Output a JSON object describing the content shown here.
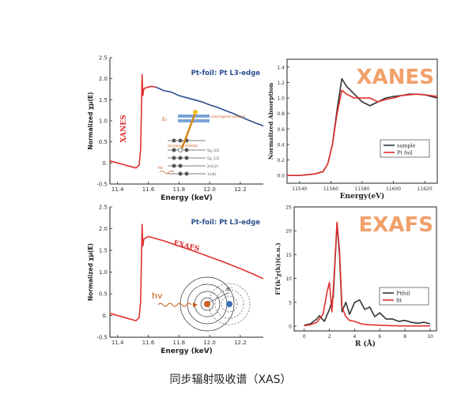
{
  "caption": "同步辐射吸收谱（XAS）",
  "colors": {
    "red": "#e03030",
    "blue": "#2c4f8f",
    "black": "#333333",
    "orange_title": "#f2a06a",
    "diagram_orange": "#cc5a1a"
  },
  "chart_data": [
    {
      "id": "xanes-left",
      "type": "line",
      "title": "Pt-foil: Pt L3-edge",
      "annotation": "XANES",
      "xlabel": "Energy (keV)",
      "ylabel": "Normalized χμ(E)",
      "xlim": [
        11.35,
        12.35
      ],
      "ylim": [
        -0.5,
        2.5
      ],
      "xticks": [
        11.4,
        11.6,
        11.8,
        12.0,
        12.2
      ],
      "yticks": [
        -0.5,
        0,
        0.5,
        1.0,
        1.5,
        2.0,
        2.5
      ],
      "xtick_labels": [
        "11.4",
        "11.6",
        "11.8",
        "12.0",
        "12.2"
      ],
      "ytick_labels": [
        "-0.5",
        "0.",
        "0.5",
        "1.0",
        "1.5",
        "2.0",
        "2.5"
      ],
      "series": [
        {
          "color": "#e03030",
          "x": [
            11.35,
            11.4,
            11.45,
            11.5,
            11.52,
            11.54,
            11.55,
            11.555,
            11.56,
            11.565,
            11.57,
            11.58,
            11.6,
            11.62,
            11.65
          ],
          "y": [
            0.05,
            0.0,
            -0.05,
            -0.1,
            -0.12,
            -0.05,
            0.3,
            1.2,
            2.1,
            1.6,
            1.75,
            1.78,
            1.8,
            1.82,
            1.8
          ]
        },
        {
          "color": "#2c4f8f",
          "x": [
            11.65,
            11.7,
            11.75,
            11.8,
            11.85,
            11.9,
            11.95,
            12.0,
            12.05,
            12.1,
            12.15,
            12.2,
            12.25,
            12.3,
            12.35
          ],
          "y": [
            1.8,
            1.72,
            1.68,
            1.6,
            1.55,
            1.5,
            1.45,
            1.38,
            1.32,
            1.25,
            1.18,
            1.1,
            1.02,
            0.95,
            0.88
          ]
        }
      ],
      "diagram_labels": {
        "e_level": "E₀",
        "unoccupied": "unoccupied orbitals",
        "occupied": "occupied orbitals",
        "hv": "hv",
        "levels": [
          "5p_3/2",
          "5p_1/2",
          "2s(L2)",
          "1s(K)"
        ]
      }
    },
    {
      "id": "xanes-right",
      "type": "line",
      "title": "XANES",
      "xlabel": "Energy(eV)",
      "ylabel": "Normalized Absorption",
      "xlim": [
        11532,
        11628
      ],
      "ylim": [
        -0.1,
        1.5
      ],
      "xticks": [
        11540,
        11560,
        11580,
        11600,
        11620
      ],
      "yticks": [
        0.0,
        0.2,
        0.4,
        0.6,
        0.8,
        1.0,
        1.2,
        1.4
      ],
      "xtick_labels": [
        "11540",
        "11560",
        "11580",
        "11600",
        "11620"
      ],
      "ytick_labels": [
        "0.0",
        "0.2",
        "0.4",
        "0.6",
        "0.8",
        "1.0",
        "1.2",
        "1.4"
      ],
      "legend": {
        "position": "right",
        "entries": [
          "sample",
          "Pt foil"
        ]
      },
      "series": [
        {
          "name": "sample",
          "color": "#333333",
          "x": [
            11532,
            11540,
            11550,
            11555,
            11558,
            11561,
            11564,
            11567,
            11570,
            11575,
            11580,
            11585,
            11590,
            11595,
            11600,
            11605,
            11610,
            11615,
            11620,
            11628
          ],
          "y": [
            0.0,
            0.0,
            0.02,
            0.05,
            0.15,
            0.4,
            0.85,
            1.25,
            1.15,
            1.05,
            0.95,
            0.9,
            0.95,
            1.0,
            1.02,
            1.03,
            1.05,
            1.05,
            1.04,
            1.0
          ]
        },
        {
          "name": "Pt foil",
          "color": "#e03030",
          "x": [
            11532,
            11540,
            11550,
            11555,
            11558,
            11561,
            11564,
            11567,
            11570,
            11575,
            11580,
            11585,
            11590,
            11595,
            11600,
            11605,
            11610,
            11615,
            11620,
            11628
          ],
          "y": [
            0.0,
            0.0,
            0.02,
            0.05,
            0.15,
            0.4,
            0.8,
            1.1,
            1.05,
            1.0,
            1.0,
            1.0,
            0.95,
            0.98,
            1.0,
            1.03,
            1.04,
            1.05,
            1.04,
            1.02
          ]
        }
      ]
    },
    {
      "id": "exafs-left",
      "type": "line",
      "title": "Pt-foil: Pt L3-edge",
      "annotation": "EXAFS",
      "xlabel": "Energy (keV)",
      "ylabel": "Normalized χμ(E)",
      "xlim": [
        11.35,
        12.35
      ],
      "ylim": [
        -0.5,
        2.5
      ],
      "xticks": [
        11.4,
        11.6,
        11.8,
        12.0,
        12.2
      ],
      "yticks": [
        -0.5,
        0,
        0.5,
        1.0,
        1.5,
        2.0,
        2.5
      ],
      "xtick_labels": [
        "11.4",
        "11.6",
        "11.8",
        "12.0",
        "12.2"
      ],
      "ytick_labels": [
        "-0.5",
        "0.",
        "0.5",
        "1.0",
        "1.5",
        "2.0",
        "2.5"
      ],
      "series": [
        {
          "color": "#e03030",
          "x": [
            11.35,
            11.4,
            11.45,
            11.5,
            11.52,
            11.54,
            11.55,
            11.555,
            11.56,
            11.565,
            11.57,
            11.58,
            11.6,
            11.7,
            11.8,
            11.9,
            12.0,
            12.1,
            12.2,
            12.3,
            12.35
          ],
          "y": [
            0.05,
            0.0,
            -0.05,
            -0.1,
            -0.12,
            -0.05,
            0.3,
            1.2,
            2.1,
            1.6,
            1.75,
            1.78,
            1.82,
            1.72,
            1.6,
            1.48,
            1.35,
            1.22,
            1.08,
            0.93,
            0.85
          ]
        }
      ],
      "diagram_labels": {
        "hv": "hv",
        "electron": "e⁻"
      }
    },
    {
      "id": "exafs-right",
      "type": "line",
      "title": "EXAFS",
      "xlabel": "R (Å)",
      "ylabel": "FT(k³χ(k))(a.u.)",
      "xlim": [
        -0.8,
        10.5
      ],
      "ylim": [
        -1,
        25
      ],
      "xticks": [
        0,
        2,
        4,
        6,
        8,
        10
      ],
      "yticks": [
        0,
        5,
        10,
        15,
        20,
        25
      ],
      "xtick_labels": [
        "0",
        "2",
        "4",
        "6",
        "8",
        "10"
      ],
      "ytick_labels": [
        "0",
        "5",
        "10",
        "15",
        "20",
        "25"
      ],
      "legend": {
        "position": "right",
        "entries": [
          "Ptfoil",
          "fit"
        ]
      },
      "series": [
        {
          "name": "Ptfoil",
          "color": "#333333",
          "x": [
            0,
            0.5,
            1,
            1.2,
            1.6,
            2.0,
            2.3,
            2.6,
            2.8,
            3.0,
            3.3,
            3.6,
            4.0,
            4.4,
            4.8,
            5.2,
            5.6,
            6.0,
            6.5,
            7.0,
            7.5,
            8.0,
            8.5,
            9.0,
            9.5,
            10
          ],
          "y": [
            0.2,
            0.5,
            1.5,
            2.2,
            1.0,
            3.5,
            6.0,
            21.5,
            15.0,
            3.0,
            5.0,
            2.5,
            5.0,
            5.5,
            3.5,
            4.0,
            2.0,
            2.8,
            1.5,
            1.5,
            1.0,
            1.2,
            0.8,
            0.6,
            0.8,
            0.5
          ]
        },
        {
          "name": "fit",
          "color": "#e03030",
          "x": [
            0,
            0.5,
            1,
            1.5,
            1.8,
            2.0,
            2.2,
            2.4,
            2.6,
            2.8,
            3.0,
            3.3,
            3.6,
            4.0,
            4.5,
            5.0,
            6,
            7,
            8,
            9,
            10
          ],
          "y": [
            0.1,
            0.3,
            0.8,
            2.5,
            7.0,
            9.2,
            3.0,
            12.0,
            21.8,
            16.0,
            4.0,
            2.0,
            1.2,
            1.0,
            0.5,
            0.3,
            0.2,
            0.1,
            0.05,
            0.05,
            0.05
          ]
        }
      ]
    }
  ]
}
